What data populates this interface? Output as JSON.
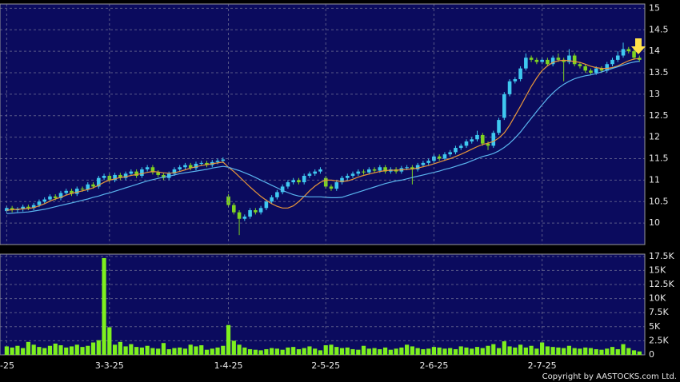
{
  "copyright": "Copyright by AASTOCKS.com Ltd.",
  "chart_data": [
    {
      "type": "candlestick",
      "up_color": "#3fc8f0",
      "down_color": "#7ed321",
      "ylim": [
        9.5,
        15.1
      ],
      "yticks": [
        10,
        10.5,
        11,
        11.5,
        12,
        12.5,
        13,
        13.5,
        14,
        14.5,
        15
      ],
      "grid": true,
      "open": [
        10.28,
        10.35,
        10.3,
        10.32,
        10.38,
        10.35,
        10.42,
        10.5,
        10.55,
        10.62,
        10.58,
        10.7,
        10.75,
        10.68,
        10.8,
        10.78,
        10.9,
        10.85,
        11.05,
        11.1,
        11.0,
        11.12,
        11.05,
        11.15,
        11.2,
        11.1,
        11.25,
        11.3,
        11.18,
        11.12,
        11.05,
        11.15,
        11.25,
        11.3,
        11.35,
        11.28,
        11.38,
        11.4,
        11.35,
        11.42,
        11.45,
        10.62,
        10.42,
        10.25,
        10.1,
        10.15,
        10.3,
        10.25,
        10.35,
        10.5,
        10.6,
        10.72,
        10.85,
        10.95,
        11.0,
        10.95,
        11.1,
        11.15,
        11.2,
        11.05,
        10.85,
        10.8,
        10.95,
        11.05,
        11.1,
        11.15,
        11.2,
        11.18,
        11.25,
        11.22,
        11.3,
        11.2,
        11.25,
        11.2,
        11.28,
        11.3,
        11.25,
        11.35,
        11.4,
        11.45,
        11.55,
        11.5,
        11.6,
        11.65,
        11.75,
        11.8,
        11.9,
        11.95,
        12.05,
        11.85,
        11.8,
        12.1,
        12.45,
        13.0,
        13.3,
        13.35,
        13.6,
        13.85,
        13.8,
        13.75,
        13.8,
        13.7,
        13.85,
        13.8,
        13.75,
        13.9,
        13.7,
        13.65,
        13.55,
        13.5,
        13.6,
        13.55,
        13.7,
        13.8,
        13.9,
        14.05,
        14.0,
        13.85
      ],
      "high": [
        10.4,
        10.4,
        10.37,
        10.43,
        10.43,
        10.47,
        10.55,
        10.6,
        10.67,
        10.67,
        10.75,
        10.8,
        10.8,
        10.85,
        10.85,
        10.95,
        10.95,
        11.1,
        11.15,
        11.15,
        11.17,
        11.17,
        11.2,
        11.25,
        11.25,
        11.3,
        11.35,
        11.35,
        11.23,
        11.17,
        11.2,
        11.3,
        11.35,
        11.4,
        11.4,
        11.43,
        11.45,
        11.45,
        11.47,
        11.5,
        11.53,
        10.67,
        10.47,
        10.3,
        10.2,
        10.35,
        10.35,
        10.4,
        10.55,
        10.65,
        10.77,
        10.9,
        11.0,
        11.05,
        11.05,
        11.15,
        11.2,
        11.25,
        11.3,
        11.1,
        10.9,
        11.0,
        11.1,
        11.15,
        11.2,
        11.25,
        11.25,
        11.3,
        11.3,
        11.35,
        11.35,
        11.3,
        11.3,
        11.33,
        11.35,
        11.35,
        11.4,
        11.45,
        11.5,
        11.6,
        11.6,
        11.65,
        11.7,
        11.8,
        11.85,
        11.95,
        12.0,
        12.15,
        12.1,
        11.9,
        12.15,
        12.45,
        13.05,
        13.35,
        13.4,
        13.65,
        13.95,
        13.9,
        13.85,
        13.85,
        13.85,
        13.9,
        13.95,
        13.85,
        14.05,
        13.95,
        13.75,
        13.7,
        13.6,
        13.65,
        13.65,
        13.75,
        13.85,
        14.0,
        14.2,
        14.1,
        14.05,
        13.9
      ],
      "low": [
        10.23,
        10.25,
        10.25,
        10.27,
        10.3,
        10.3,
        10.37,
        10.45,
        10.5,
        10.53,
        10.53,
        10.65,
        10.63,
        10.63,
        10.73,
        10.73,
        10.8,
        10.8,
        11.0,
        10.95,
        10.95,
        11.0,
        11.0,
        11.1,
        11.05,
        11.05,
        11.2,
        11.13,
        11.07,
        11.0,
        11.0,
        11.1,
        11.2,
        11.25,
        11.23,
        11.23,
        11.33,
        11.3,
        11.3,
        11.37,
        11.4,
        10.37,
        10.2,
        9.72,
        10.05,
        10.1,
        10.2,
        10.2,
        10.3,
        10.45,
        10.55,
        10.67,
        10.8,
        10.9,
        10.9,
        10.9,
        11.05,
        11.1,
        11.15,
        10.8,
        10.75,
        10.75,
        10.9,
        11.0,
        11.05,
        11.1,
        11.13,
        11.13,
        11.17,
        11.17,
        11.15,
        11.15,
        11.15,
        11.15,
        11.23,
        10.9,
        11.2,
        11.3,
        11.35,
        11.4,
        11.45,
        11.45,
        11.55,
        11.6,
        11.7,
        11.75,
        11.85,
        11.9,
        11.8,
        11.7,
        11.75,
        12.05,
        12.4,
        12.95,
        13.25,
        13.3,
        13.55,
        13.75,
        13.7,
        13.7,
        13.65,
        13.65,
        13.75,
        13.3,
        13.7,
        13.65,
        13.6,
        13.5,
        13.45,
        13.45,
        13.5,
        13.5,
        13.65,
        13.75,
        13.85,
        13.95,
        13.8,
        13.75
      ],
      "close": [
        10.35,
        10.3,
        10.32,
        10.38,
        10.35,
        10.42,
        10.5,
        10.55,
        10.62,
        10.58,
        10.7,
        10.75,
        10.68,
        10.8,
        10.78,
        10.9,
        10.85,
        11.05,
        11.1,
        11.0,
        11.12,
        11.05,
        11.15,
        11.2,
        11.1,
        11.25,
        11.3,
        11.18,
        11.12,
        11.05,
        11.15,
        11.25,
        11.3,
        11.35,
        11.28,
        11.38,
        11.4,
        11.35,
        11.42,
        11.45,
        11.48,
        10.42,
        10.25,
        10.1,
        10.15,
        10.3,
        10.25,
        10.35,
        10.5,
        10.6,
        10.72,
        10.85,
        10.95,
        11.0,
        10.95,
        11.1,
        11.15,
        11.2,
        11.25,
        10.85,
        10.8,
        10.95,
        11.05,
        11.1,
        11.15,
        11.2,
        11.18,
        11.25,
        11.22,
        11.3,
        11.2,
        11.25,
        11.2,
        11.28,
        11.3,
        11.25,
        11.35,
        11.4,
        11.45,
        11.55,
        11.5,
        11.6,
        11.65,
        11.75,
        11.8,
        11.9,
        11.95,
        12.05,
        11.85,
        11.8,
        12.1,
        12.4,
        13.0,
        13.3,
        13.35,
        13.6,
        13.85,
        13.8,
        13.75,
        13.8,
        13.7,
        13.85,
        13.8,
        13.75,
        13.9,
        13.7,
        13.65,
        13.55,
        13.5,
        13.6,
        13.55,
        13.7,
        13.8,
        13.9,
        14.05,
        14.0,
        13.85,
        13.8
      ],
      "lines": [
        {
          "color": "#e8963a",
          "values": [
            10.3,
            10.31,
            10.32,
            10.33,
            10.34,
            10.36,
            10.4,
            10.45,
            10.51,
            10.56,
            10.6,
            10.65,
            10.69,
            10.72,
            10.75,
            10.78,
            10.82,
            10.88,
            10.95,
            11.0,
            11.03,
            11.06,
            11.08,
            11.11,
            11.13,
            11.15,
            11.18,
            11.2,
            11.19,
            11.17,
            11.16,
            11.17,
            11.2,
            11.24,
            11.28,
            11.31,
            11.34,
            11.36,
            11.38,
            11.4,
            11.42,
            11.3,
            11.2,
            11.08,
            10.96,
            10.84,
            10.73,
            10.62,
            10.53,
            10.45,
            10.39,
            10.35,
            10.35,
            10.4,
            10.5,
            10.62,
            10.75,
            10.86,
            10.95,
            11.0,
            11.0,
            10.98,
            10.97,
            10.98,
            11.02,
            11.07,
            11.11,
            11.14,
            11.17,
            11.2,
            11.22,
            11.23,
            11.23,
            11.24,
            11.25,
            11.26,
            11.28,
            11.31,
            11.34,
            11.38,
            11.42,
            11.46,
            11.5,
            11.55,
            11.6,
            11.66,
            11.72,
            11.78,
            11.83,
            11.86,
            11.9,
            11.98,
            12.1,
            12.28,
            12.5,
            12.72,
            12.95,
            13.18,
            13.38,
            13.55,
            13.66,
            13.74,
            13.78,
            13.79,
            13.78,
            13.76,
            13.74,
            13.7,
            13.65,
            13.62,
            13.6,
            13.6,
            13.62,
            13.66,
            13.72,
            13.78,
            13.82,
            13.83
          ]
        },
        {
          "color": "#5ab4ee",
          "values": [
            10.22,
            10.23,
            10.24,
            10.25,
            10.26,
            10.28,
            10.3,
            10.32,
            10.35,
            10.38,
            10.41,
            10.44,
            10.47,
            10.5,
            10.53,
            10.56,
            10.6,
            10.63,
            10.67,
            10.7,
            10.74,
            10.78,
            10.82,
            10.86,
            10.9,
            10.94,
            10.98,
            11.01,
            11.04,
            11.07,
            11.09,
            11.12,
            11.15,
            11.17,
            11.19,
            11.21,
            11.23,
            11.25,
            11.28,
            11.3,
            11.32,
            11.3,
            11.26,
            11.22,
            11.17,
            11.12,
            11.06,
            11.0,
            10.94,
            10.88,
            10.82,
            10.76,
            10.71,
            10.66,
            10.63,
            10.62,
            10.61,
            10.61,
            10.61,
            10.6,
            10.59,
            10.59,
            10.6,
            10.64,
            10.68,
            10.72,
            10.76,
            10.8,
            10.84,
            10.88,
            10.92,
            10.95,
            10.98,
            11.0,
            11.03,
            11.06,
            11.09,
            11.12,
            11.15,
            11.18,
            11.21,
            11.25,
            11.28,
            11.32,
            11.36,
            11.4,
            11.45,
            11.5,
            11.55,
            11.58,
            11.62,
            11.68,
            11.76,
            11.86,
            11.98,
            12.12,
            12.28,
            12.44,
            12.6,
            12.75,
            12.9,
            13.03,
            13.14,
            13.23,
            13.3,
            13.36,
            13.4,
            13.43,
            13.45,
            13.48,
            13.52,
            13.56,
            13.6,
            13.64,
            13.68,
            13.72,
            13.75,
            13.77
          ]
        }
      ]
    },
    {
      "type": "bar",
      "color": "#7ef01e",
      "ylim": [
        0,
        17900
      ],
      "grid": true,
      "yticks": [
        0,
        {
          "value": 2500,
          "label": "2.5K"
        },
        {
          "value": 5000,
          "label": "5K"
        },
        {
          "value": 7500,
          "label": "7.5K"
        },
        {
          "value": 10000,
          "label": "10K"
        },
        {
          "value": 12500,
          "label": "12.5K"
        },
        {
          "value": 15000,
          "label": "15K"
        },
        {
          "value": 17500,
          "label": "17.5K"
        }
      ],
      "categories": [
        "-25",
        null,
        null,
        null,
        null,
        null,
        null,
        null,
        null,
        null,
        null,
        null,
        null,
        null,
        null,
        null,
        null,
        null,
        null,
        "3-3-25",
        null,
        null,
        null,
        null,
        null,
        null,
        null,
        null,
        null,
        null,
        null,
        null,
        null,
        null,
        null,
        null,
        null,
        null,
        null,
        null,
        null,
        "1-4-25",
        null,
        null,
        null,
        null,
        null,
        null,
        null,
        null,
        null,
        null,
        null,
        null,
        null,
        null,
        null,
        null,
        null,
        "2-5-25",
        null,
        null,
        null,
        null,
        null,
        null,
        null,
        null,
        null,
        null,
        null,
        null,
        null,
        null,
        null,
        null,
        null,
        null,
        null,
        "2-6-25",
        null,
        null,
        null,
        null,
        null,
        null,
        null,
        null,
        null,
        null,
        null,
        null,
        null,
        null,
        null,
        null,
        null,
        null,
        null,
        "2-7-25",
        null,
        null,
        null,
        null,
        null,
        null,
        null,
        null,
        null,
        null,
        null,
        null,
        null,
        null,
        null,
        null,
        null,
        null
      ],
      "values": [
        1500,
        1300,
        1600,
        1200,
        2300,
        1800,
        1400,
        1200,
        1600,
        2000,
        1700,
        1300,
        1500,
        1800,
        1400,
        1600,
        2200,
        2600,
        17200,
        4900,
        1800,
        2300,
        1500,
        1900,
        1400,
        1300,
        1600,
        1200,
        1100,
        2100,
        1000,
        1200,
        1300,
        1100,
        1800,
        1500,
        1700,
        900,
        1100,
        1300,
        1600,
        5300,
        2500,
        1800,
        1300,
        1000,
        900,
        800,
        1000,
        1200,
        1100,
        900,
        1300,
        1400,
        1000,
        1200,
        1500,
        1100,
        800,
        1700,
        1800,
        1400,
        1200,
        1300,
        1000,
        900,
        1600,
        1100,
        1200,
        1000,
        1300,
        900,
        1100,
        1300,
        1800,
        1500,
        1200,
        1000,
        1100,
        1400,
        1300,
        1100,
        1200,
        1000,
        1500,
        1300,
        1100,
        1400,
        1200,
        1600,
        1900,
        1200,
        2400,
        1500,
        1300,
        1800,
        1300,
        1600,
        1100,
        2200,
        1500,
        1400,
        1300,
        1200,
        1600,
        1200,
        1100,
        1300,
        1200,
        1000,
        900,
        1100,
        1400,
        1000,
        1900,
        1200,
        800,
        600
      ]
    }
  ]
}
